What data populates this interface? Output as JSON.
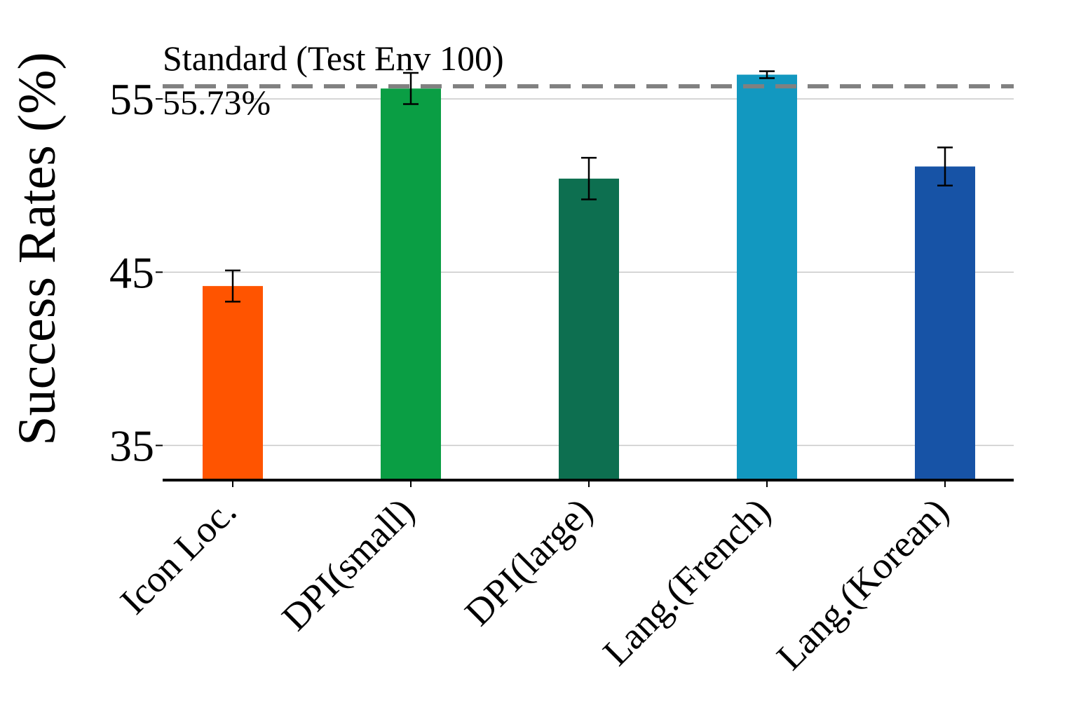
{
  "chart_data": {
    "type": "bar",
    "ylabel": "Success Rates (%)",
    "xlabel": "",
    "categories": [
      "Icon Loc.",
      "DPI(small)",
      "DPI(large)",
      "Lang.(French)",
      "Lang.(Korean)"
    ],
    "values": [
      44.2,
      55.6,
      50.4,
      56.4,
      51.1
    ],
    "errors": [
      0.9,
      0.9,
      1.2,
      0.2,
      1.1
    ],
    "colors": [
      "#ff5400",
      "#0a9e44",
      "#0d6f50",
      "#1298c0",
      "#1753a6"
    ],
    "ylim": [
      33,
      59.9
    ],
    "yticks": [
      35,
      45,
      55
    ],
    "grid": "horizontal",
    "reference_line": {
      "value": 55.73,
      "label_line1": "Standard (Test Env 100)",
      "label_line2": "55.73%",
      "color": "#808080",
      "style": "dashed"
    }
  }
}
